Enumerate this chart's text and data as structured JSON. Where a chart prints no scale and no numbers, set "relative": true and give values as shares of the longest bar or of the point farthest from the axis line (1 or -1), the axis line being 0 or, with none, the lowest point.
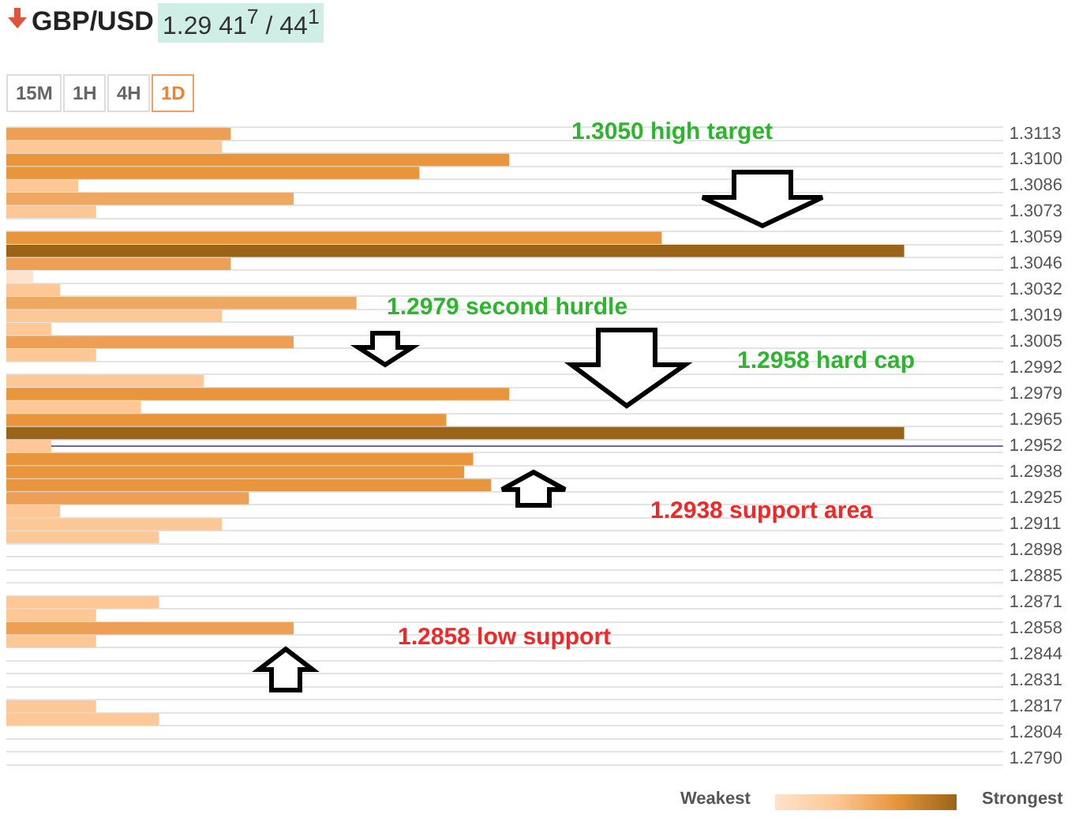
{
  "chart_data": {
    "type": "bar",
    "orientation": "horizontal",
    "relative": true,
    "title": "GBP/USD",
    "subtitle": "1.29 41$^{7}$ / 44$^{1}$",
    "categories": [
      "1.3113",
      null,
      "1.3100",
      null,
      "1.3086",
      null,
      "1.3073",
      null,
      "1.3059",
      null,
      "1.3046",
      null,
      "1.3032",
      null,
      "1.3019",
      null,
      "1.3005",
      null,
      "1.2992",
      null,
      "1.2979",
      null,
      "1.2965",
      null,
      "1.2952",
      null,
      "1.2938",
      null,
      "1.2925",
      null,
      "1.2911",
      null,
      "1.2898",
      null,
      "1.2885",
      null,
      "1.2871",
      null,
      "1.2858",
      null,
      "1.2844",
      null,
      "1.2831",
      null,
      "1.2817",
      null,
      "1.2804",
      null,
      "1.2790"
    ],
    "values": [
      0.25,
      0.24,
      0.56,
      0.46,
      0.08,
      0.32,
      0.1,
      null,
      0.73,
      1,
      0.25,
      0.03,
      0.06,
      0.39,
      0.24,
      0.05,
      0.32,
      0.1,
      null,
      0.22,
      0.56,
      0.15,
      0.49,
      1,
      0.05,
      0.52,
      0.51,
      0.54,
      0.27,
      0.06,
      0.24,
      0.17,
      null,
      null,
      null,
      null,
      0.17,
      0.1,
      0.32,
      0.1,
      null,
      null,
      null,
      null,
      0.1,
      0.17,
      null,
      null,
      null
    ],
    "colors": [
      "#eda055",
      "#fdc896",
      "#e8953c",
      "#e8953c",
      "#fdc896",
      "#efa862",
      "#fdc896",
      null,
      "#e8953c",
      "#9a6418",
      "#eda055",
      "#fde2cc",
      "#fdc896",
      "#efa862",
      "#fdc896",
      "#fdc896",
      "#eda055",
      "#fdc896",
      null,
      "#fdc896",
      "#e8953c",
      "#fdc896",
      "#e8953c",
      "#9a6418",
      "#fdc896",
      "#e8953c",
      "#e8953c",
      "#e8953c",
      "#eda055",
      "#fdc896",
      "#fdc896",
      "#fdc896",
      null,
      null,
      null,
      null,
      "#fdc896",
      "#fdc896",
      "#eda055",
      "#fdc896",
      null,
      null,
      null,
      null,
      "#fdc896",
      "#fdc896",
      null,
      null,
      null
    ],
    "ref_lines": [
      {
        "axis": "y",
        "value": "1.2952",
        "color": "#6b6b9b"
      }
    ],
    "grid": "y",
    "legend": false,
    "annotations": [
      "15M",
      "1H",
      "4H",
      "1D",
      "1.3050 high target",
      "1.2979 second hurdle",
      "1.2958 hard cap",
      "1.2938 support area",
      "1.2858 low support",
      "Weakest",
      "Strongest"
    ]
  }
}
